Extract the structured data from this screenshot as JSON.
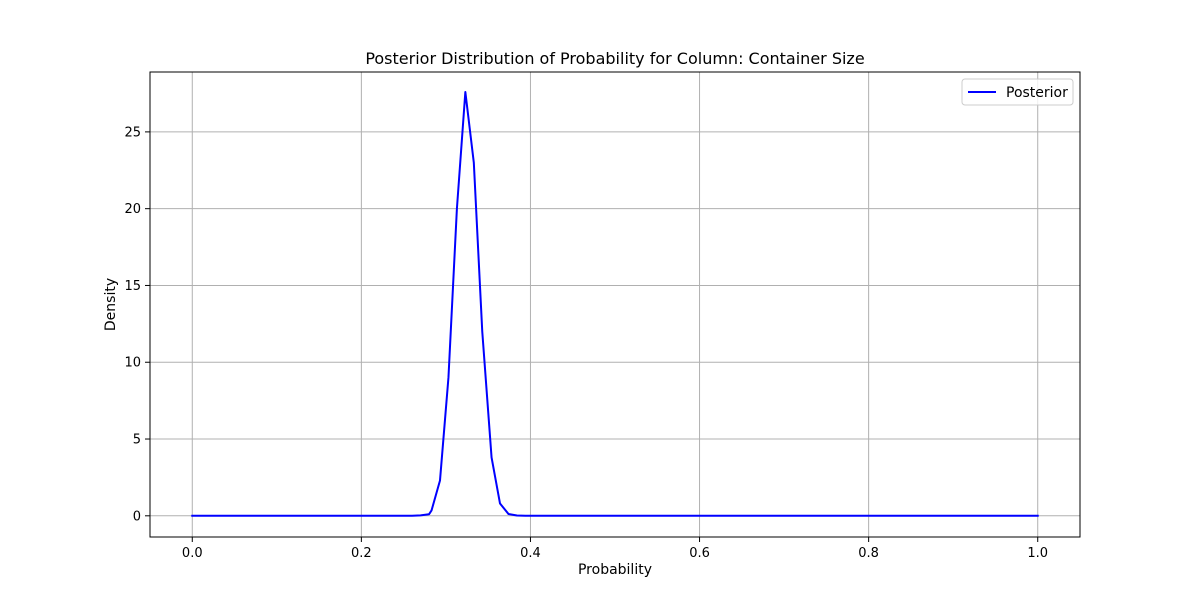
{
  "chart_data": {
    "type": "line",
    "title": "Posterior Distribution of Probability for Column: Container Size",
    "xlabel": "Probability",
    "ylabel": "Density",
    "xlim": [
      -0.05,
      1.05
    ],
    "ylim": [
      -1.38,
      28.9
    ],
    "grid": true,
    "legend_position": "top-right",
    "x_ticks": [
      0.0,
      0.2,
      0.4,
      0.6,
      0.8,
      1.0
    ],
    "x_tick_labels": [
      "0.0",
      "0.2",
      "0.4",
      "0.6",
      "0.8",
      "1.0"
    ],
    "y_ticks": [
      0,
      5,
      10,
      15,
      20,
      25
    ],
    "y_tick_labels": [
      "0",
      "5",
      "10",
      "15",
      "20",
      "25"
    ],
    "series": [
      {
        "name": "Posterior",
        "color": "#0000ff",
        "x": [
          0.0,
          0.05,
          0.1,
          0.15,
          0.2,
          0.25,
          0.26,
          0.27,
          0.28,
          0.283,
          0.293,
          0.303,
          0.313,
          0.323,
          0.333,
          0.343,
          0.354,
          0.364,
          0.374,
          0.384,
          0.394,
          0.404,
          0.45,
          0.5,
          0.6,
          0.7,
          0.8,
          0.9,
          1.0
        ],
        "y": [
          0,
          0,
          0,
          0,
          0,
          0,
          0.005,
          0.03,
          0.1,
          0.35,
          2.3,
          9.0,
          20.0,
          27.6,
          23.0,
          12.0,
          3.8,
          0.8,
          0.12,
          0.02,
          0.005,
          0,
          0,
          0,
          0,
          0,
          0,
          0,
          0
        ]
      }
    ]
  },
  "colors": {
    "grid": "#b0b0b0",
    "axis": "#000000",
    "background": "#ffffff"
  }
}
